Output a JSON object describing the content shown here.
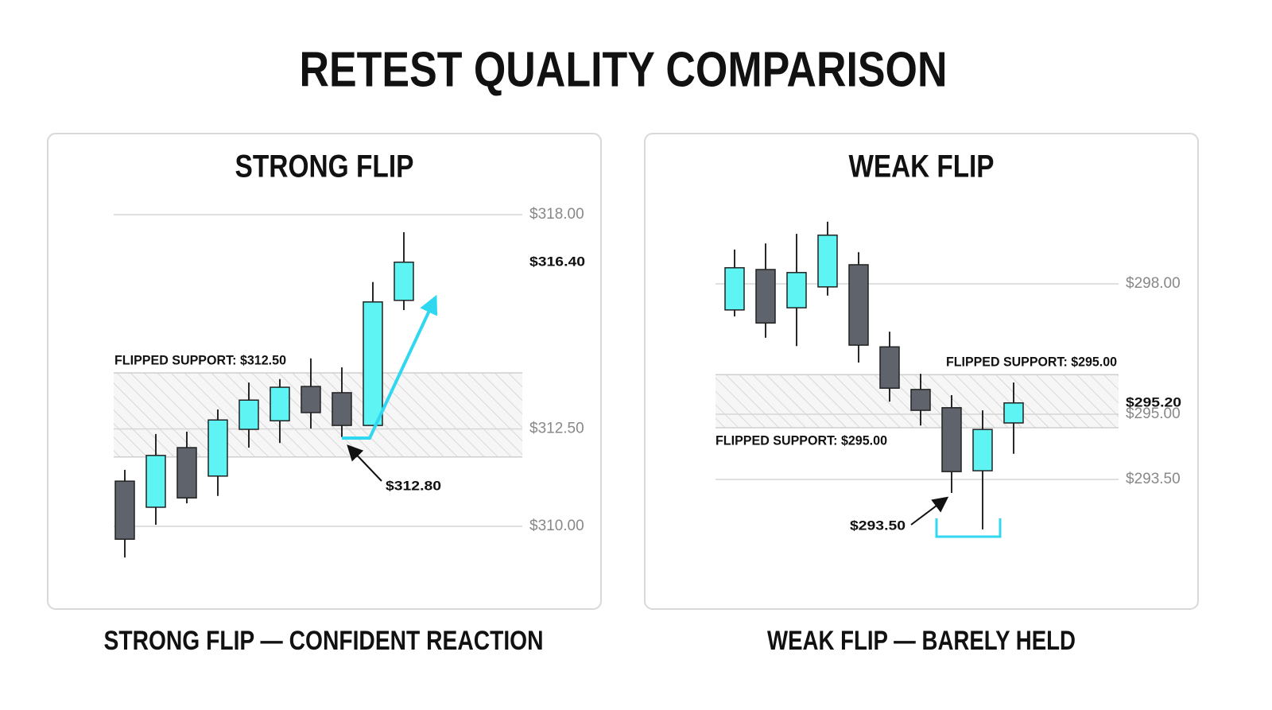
{
  "title": "RETEST QUALITY COMPARISON",
  "chart_data": [
    {
      "type": "candlestick",
      "title": "STRONG FLIP",
      "caption": "STRONG FLIP — CONFIDENT REACTION",
      "up_color": "#5ff4f4",
      "down_color": "#5f636c",
      "open": [
        311.16,
        310.49,
        312.02,
        311.29,
        312.49,
        312.71,
        313.59,
        313.43,
        312.59,
        315.8
      ],
      "high": [
        311.45,
        312.37,
        312.43,
        313.0,
        313.69,
        313.78,
        314.31,
        314.08,
        316.27,
        317.55
      ],
      "low": [
        309.2,
        310.04,
        310.59,
        310.78,
        312.02,
        312.14,
        312.51,
        312.29,
        312.59,
        315.55
      ],
      "close": [
        309.67,
        311.82,
        310.73,
        312.73,
        313.24,
        313.57,
        312.92,
        312.59,
        315.76,
        316.78
      ],
      "zone": [
        311.78,
        313.94
      ],
      "ylim": [
        309,
        319
      ],
      "yticks": [
        {
          "value": 318,
          "label": "$318.00"
        },
        {
          "value": 312.5,
          "label": "$312.50"
        },
        {
          "value": 310,
          "label": "$310.00"
        }
      ],
      "annotations": [
        "FLIPPED SUPPORT: $312.50",
        "$316.40",
        "$312.80"
      ],
      "grid": true
    },
    {
      "type": "candlestick",
      "title": "WEAK FLIP",
      "caption": "WEAK FLIP — BARELY HELD",
      "up_color": "#5ff4f4",
      "down_color": "#5f636c",
      "open": [
        297.4,
        298.33,
        297.45,
        297.93,
        298.44,
        296.55,
        295.57,
        295.15,
        293.7,
        294.8
      ],
      "high": [
        298.79,
        298.93,
        299.15,
        299.43,
        298.73,
        296.9,
        295.93,
        295.44,
        295.09,
        295.73
      ],
      "low": [
        297.25,
        296.76,
        296.57,
        297.73,
        296.19,
        295.29,
        294.74,
        293.19,
        292.35,
        294.09
      ],
      "close": [
        298.37,
        297.1,
        298.26,
        299.12,
        296.59,
        295.6,
        295.09,
        293.68,
        294.65,
        295.26
      ],
      "zone": [
        294.69,
        295.91
      ],
      "ylim": [
        292,
        300
      ],
      "yticks": [
        {
          "value": 298,
          "label": "$298.00"
        },
        {
          "value": 295,
          "label": "$295.00"
        },
        {
          "value": 293.5,
          "label": "$293.50"
        }
      ],
      "annotations": [
        "FLIPPED SUPPORT: $295.00",
        "FLIPPED SUPPORT: $295.00",
        "$295.20",
        "$293.50"
      ],
      "grid": true
    }
  ]
}
